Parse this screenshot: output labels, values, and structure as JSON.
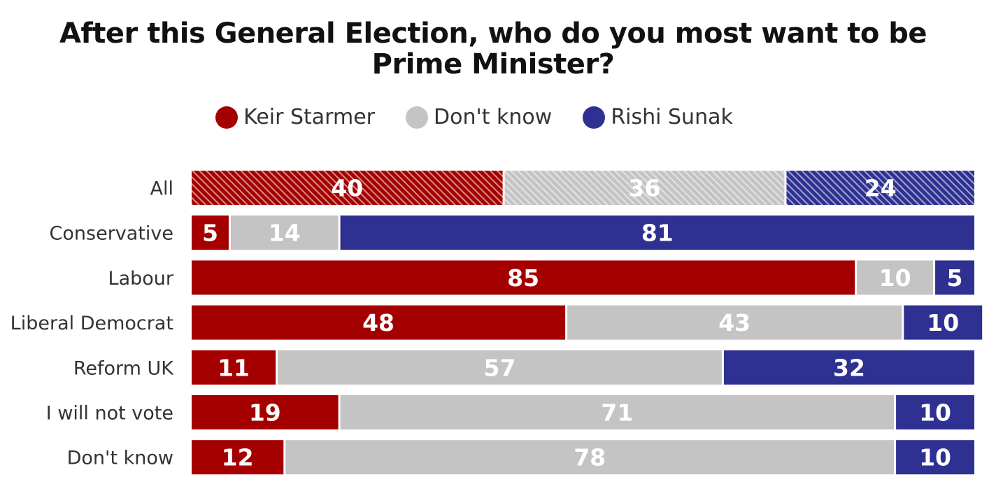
{
  "chart_data": {
    "type": "bar",
    "orientation": "horizontal",
    "stacked": true,
    "normalized": true,
    "title_lines": [
      "After this General Election, who do you most want to be",
      "Prime Minister?"
    ],
    "xlabel": "",
    "ylabel": "",
    "xlim": [
      0,
      100
    ],
    "grid": false,
    "legend_position": "top-center",
    "categories": [
      "All",
      "Conservative",
      "Labour",
      "Liberal Democrat",
      "Reform UK",
      "I will not vote",
      "Don't know"
    ],
    "series": [
      {
        "name": "Keir Starmer",
        "color": "#a50000",
        "label_color": "#ffffff",
        "values": [
          40,
          5,
          85,
          48,
          11,
          19,
          12
        ]
      },
      {
        "name": "Don't know",
        "color": "#c4c4c4",
        "label_color": "#ffffff",
        "values": [
          36,
          14,
          10,
          43,
          57,
          71,
          78
        ]
      },
      {
        "name": "Rishi Sunak",
        "color": "#2e3192",
        "label_color": "#ffffff",
        "values": [
          24,
          81,
          5,
          10,
          32,
          10,
          10
        ]
      }
    ],
    "hatched_categories": [
      "All"
    ]
  }
}
